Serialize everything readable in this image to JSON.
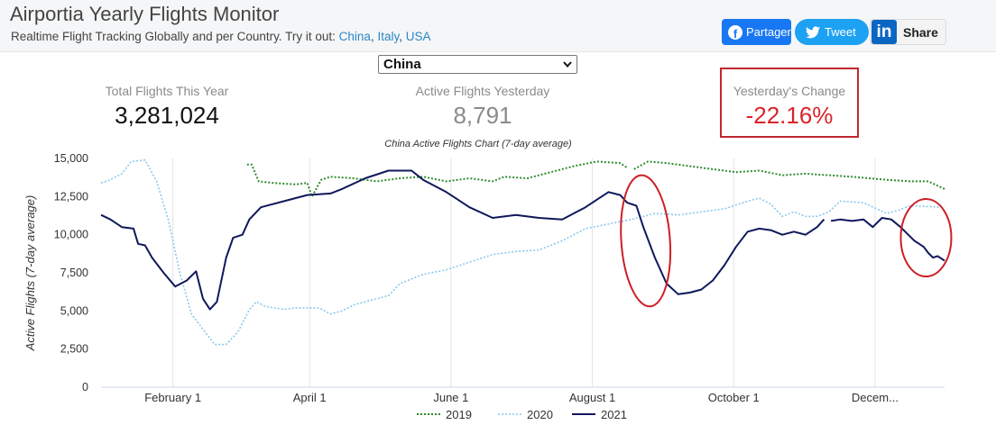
{
  "header": {
    "title": "Airportia Yearly Flights Monitor",
    "subtitle_prefix": "Realtime Flight Tracking Globally and per Country. Try it out: ",
    "links": [
      "China",
      "Italy",
      "USA"
    ],
    "link_separator": ", "
  },
  "share": {
    "facebook_label": "Partager",
    "twitter_label": "Tweet",
    "linkedin_label": "Share",
    "icons": [
      "facebook-icon",
      "twitter-icon",
      "linkedin-icon"
    ]
  },
  "country_select": {
    "value": "China"
  },
  "stats": {
    "total": {
      "label": "Total Flights This Year",
      "value": "3,281,024"
    },
    "active": {
      "label": "Active Flights Yesterday",
      "value": "8,791"
    },
    "change": {
      "label": "Yesterday's Change",
      "value": "-22.16%"
    }
  },
  "colors": {
    "series_2019": "#2e8b2e",
    "series_2020": "#87c9ea",
    "series_2021": "#10185c",
    "change": "#d9232a",
    "annotation": "#cc1f26"
  },
  "chart_data": {
    "type": "line",
    "title": "China Active Flights Chart (7-day average)",
    "ylabel": "Active Flights (7-day average)",
    "ylim": [
      0,
      15000
    ],
    "yticks": [
      0,
      2500,
      5000,
      7500,
      10000,
      12500,
      15000
    ],
    "ytick_labels": [
      "0",
      "2,500",
      "5,000",
      "7,500",
      "10,000",
      "12,500",
      "15,000"
    ],
    "xlim": [
      1,
      365
    ],
    "xticks": [
      32,
      91,
      152,
      213,
      274,
      335
    ],
    "xtick_labels": [
      "February 1",
      "April 1",
      "June 1",
      "August 1",
      "October 1",
      "Decem..."
    ],
    "legend_position": "bottom-center",
    "grid": "vertical",
    "series": [
      {
        "name": "2019",
        "style": "dotted",
        "segments": [
          [
            [
              64,
              14600
            ],
            [
              66,
              14600
            ],
            [
              69,
              13500
            ],
            [
              75,
              13400
            ],
            [
              85,
              13300
            ],
            [
              90,
              13400
            ],
            [
              92,
              12500
            ],
            [
              96,
              13600
            ],
            [
              100,
              13800
            ],
            [
              110,
              13700
            ],
            [
              120,
              13500
            ],
            [
              130,
              13700
            ],
            [
              140,
              13800
            ],
            [
              150,
              13500
            ],
            [
              160,
              13700
            ],
            [
              170,
              13500
            ],
            [
              175,
              13800
            ],
            [
              185,
              13700
            ],
            [
              195,
              14100
            ],
            [
              205,
              14500
            ],
            [
              215,
              14800
            ],
            [
              225,
              14700
            ],
            [
              228,
              14400
            ]
          ],
          [
            [
              231,
              14300
            ],
            [
              237,
              14800
            ],
            [
              245,
              14700
            ],
            [
              255,
              14500
            ],
            [
              265,
              14300
            ],
            [
              275,
              14100
            ],
            [
              285,
              14200
            ],
            [
              295,
              13900
            ],
            [
              305,
              14000
            ],
            [
              315,
              13900
            ],
            [
              325,
              13800
            ],
            [
              340,
              13600
            ],
            [
              350,
              13500
            ],
            [
              355,
              13500
            ],
            [
              358,
              13500
            ],
            [
              365,
              13000
            ]
          ]
        ]
      },
      {
        "name": "2020",
        "style": "dotted",
        "segments": [
          [
            [
              1,
              13400
            ],
            [
              5,
              13600
            ],
            [
              10,
              14000
            ],
            [
              14,
              14800
            ],
            [
              20,
              14900
            ],
            [
              25,
              13500
            ],
            [
              30,
              11000
            ],
            [
              35,
              7500
            ],
            [
              40,
              4800
            ],
            [
              45,
              3800
            ],
            [
              50,
              2800
            ],
            [
              55,
              2800
            ],
            [
              60,
              3600
            ],
            [
              65,
              5100
            ],
            [
              68,
              5600
            ],
            [
              72,
              5300
            ],
            [
              80,
              5100
            ],
            [
              85,
              5200
            ],
            [
              95,
              5200
            ],
            [
              100,
              4800
            ],
            [
              105,
              5000
            ],
            [
              110,
              5400
            ],
            [
              120,
              5800
            ],
            [
              125,
              6000
            ],
            [
              130,
              6800
            ],
            [
              140,
              7400
            ],
            [
              150,
              7700
            ],
            [
              160,
              8200
            ],
            [
              170,
              8700
            ],
            [
              180,
              8900
            ],
            [
              190,
              9000
            ],
            [
              200,
              9600
            ],
            [
              210,
              10400
            ],
            [
              220,
              10700
            ],
            [
              230,
              11000
            ],
            [
              240,
              11400
            ],
            [
              250,
              11300
            ],
            [
              260,
              11500
            ],
            [
              270,
              11700
            ],
            [
              280,
              12200
            ],
            [
              285,
              12400
            ],
            [
              290,
              12000
            ],
            [
              295,
              11200
            ],
            [
              300,
              11500
            ],
            [
              305,
              11200
            ],
            [
              310,
              11200
            ],
            [
              315,
              11500
            ],
            [
              320,
              12200
            ],
            [
              330,
              12100
            ],
            [
              340,
              11400
            ],
            [
              345,
              11600
            ],
            [
              350,
              11900
            ],
            [
              365,
              11800
            ]
          ]
        ]
      },
      {
        "name": "2021",
        "style": "solid",
        "segments": [
          [
            [
              1,
              11300
            ],
            [
              5,
              11000
            ],
            [
              10,
              10500
            ],
            [
              15,
              10400
            ],
            [
              17,
              9400
            ],
            [
              20,
              9300
            ],
            [
              23,
              8500
            ],
            [
              28,
              7500
            ],
            [
              33,
              6600
            ],
            [
              38,
              7000
            ],
            [
              42,
              7600
            ],
            [
              45,
              5800
            ],
            [
              48,
              5100
            ],
            [
              51,
              5600
            ],
            [
              55,
              8500
            ],
            [
              58,
              9800
            ],
            [
              62,
              10000
            ],
            [
              65,
              11000
            ],
            [
              70,
              11800
            ],
            [
              80,
              12200
            ],
            [
              90,
              12600
            ],
            [
              100,
              12700
            ],
            [
              105,
              13000
            ],
            [
              115,
              13700
            ],
            [
              125,
              14200
            ],
            [
              135,
              14200
            ],
            [
              140,
              13600
            ],
            [
              150,
              12800
            ],
            [
              160,
              11800
            ],
            [
              170,
              11100
            ],
            [
              180,
              11300
            ],
            [
              190,
              11100
            ],
            [
              200,
              11000
            ],
            [
              210,
              11800
            ],
            [
              215,
              12300
            ],
            [
              220,
              12800
            ],
            [
              225,
              12600
            ],
            [
              228,
              12100
            ],
            [
              232,
              11900
            ],
            [
              235,
              10500
            ],
            [
              240,
              8500
            ],
            [
              245,
              6800
            ],
            [
              250,
              6100
            ],
            [
              255,
              6200
            ],
            [
              260,
              6400
            ],
            [
              265,
              7000
            ],
            [
              270,
              8000
            ],
            [
              275,
              9200
            ],
            [
              280,
              10200
            ],
            [
              285,
              10400
            ],
            [
              290,
              10300
            ],
            [
              295,
              10000
            ],
            [
              300,
              10200
            ],
            [
              305,
              10000
            ],
            [
              310,
              10500
            ],
            [
              313,
              11000
            ]
          ],
          [
            [
              316,
              10900
            ],
            [
              320,
              11000
            ],
            [
              325,
              10900
            ],
            [
              330,
              11000
            ],
            [
              334,
              10500
            ],
            [
              338,
              11100
            ],
            [
              342,
              11000
            ],
            [
              346,
              10500
            ],
            [
              352,
              9600
            ],
            [
              356,
              9200
            ],
            [
              358,
              8800
            ],
            [
              360,
              8500
            ],
            [
              362,
              8600
            ],
            [
              365,
              8300
            ]
          ]
        ]
      }
    ]
  }
}
